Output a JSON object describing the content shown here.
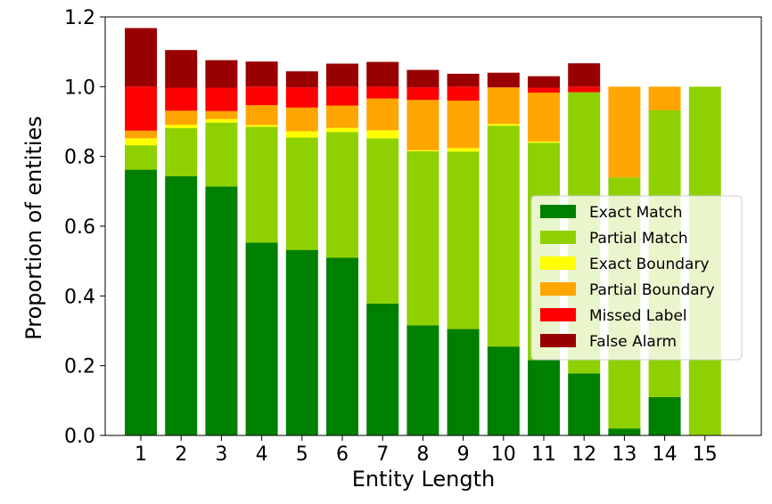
{
  "chart_data": {
    "type": "bar",
    "stacked": true,
    "title": "",
    "xlabel": "Entity Length",
    "ylabel": "Proportion of entities",
    "categories": [
      "1",
      "2",
      "3",
      "4",
      "5",
      "6",
      "7",
      "8",
      "9",
      "10",
      "11",
      "12",
      "13",
      "14",
      "15"
    ],
    "ylim": [
      0,
      1.2
    ],
    "yticks": [
      "0.0",
      "0.2",
      "0.4",
      "0.6",
      "0.8",
      "1.0",
      "1.2"
    ],
    "grid": false,
    "legend_position": "center-right",
    "series": [
      {
        "name": "Exact Match",
        "color": "#008000",
        "values": [
          0.762,
          0.743,
          0.714,
          0.553,
          0.532,
          0.51,
          0.378,
          0.316,
          0.305,
          0.255,
          0.216,
          0.178,
          0.02,
          0.11,
          0.0
        ]
      },
      {
        "name": "Partial Match",
        "color": "#8fd100",
        "values": [
          0.07,
          0.138,
          0.183,
          0.332,
          0.322,
          0.36,
          0.474,
          0.499,
          0.509,
          0.633,
          0.623,
          0.806,
          0.72,
          0.822,
          1.0
        ]
      },
      {
        "name": "Exact Boundary",
        "color": "#ffff00",
        "values": [
          0.02,
          0.01,
          0.01,
          0.005,
          0.018,
          0.012,
          0.023,
          0.003,
          0.01,
          0.005,
          0.004,
          0.0,
          0.0,
          0.0,
          0.0
        ]
      },
      {
        "name": "Partial Boundary",
        "color": "#ffa500",
        "values": [
          0.022,
          0.04,
          0.023,
          0.057,
          0.068,
          0.064,
          0.091,
          0.144,
          0.136,
          0.105,
          0.14,
          0.0,
          0.26,
          0.068,
          0.0
        ]
      },
      {
        "name": "Missed Label",
        "color": "#ff0000",
        "values": [
          0.126,
          0.066,
          0.067,
          0.053,
          0.058,
          0.054,
          0.034,
          0.036,
          0.04,
          0.0,
          0.014,
          0.016,
          0.0,
          0.0,
          0.0
        ]
      },
      {
        "name": "False Alarm",
        "color": "#990000",
        "values": [
          0.168,
          0.108,
          0.079,
          0.072,
          0.046,
          0.066,
          0.071,
          0.05,
          0.037,
          0.042,
          0.033,
          0.067,
          0.0,
          0.0,
          0.0
        ]
      }
    ]
  }
}
